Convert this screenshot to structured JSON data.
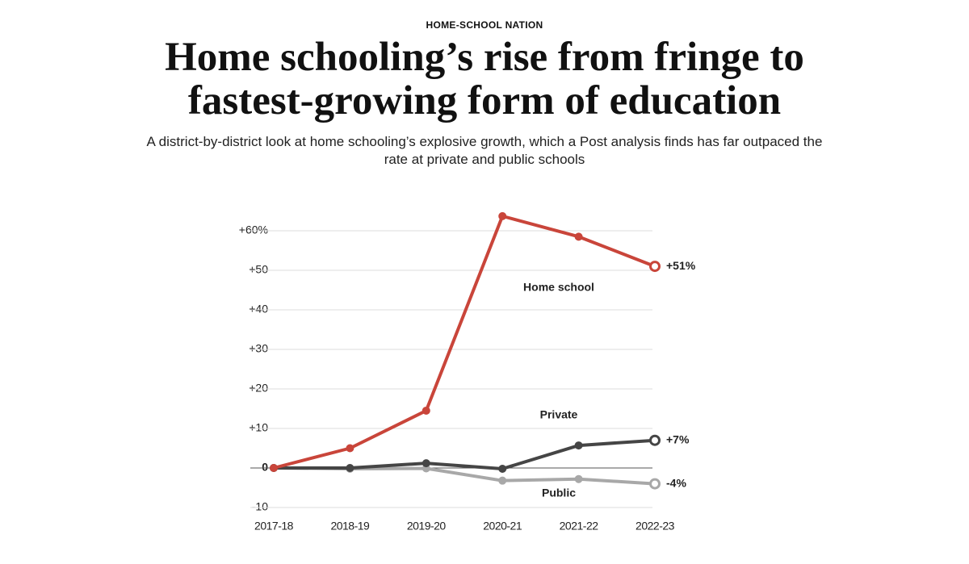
{
  "kicker": "HOME-SCHOOL NATION",
  "title": "Home schooling’s rise from fringe to fastest-growing form of education",
  "subtitle": "A district-by-district look at home schooling’s explosive growth, which a Post analysis finds has far outpaced the rate at private and public schools",
  "chart_data": {
    "type": "line",
    "categories": [
      "2017-18",
      "2018-19",
      "2019-20",
      "2020-21",
      "2021-22",
      "2022-23"
    ],
    "series": [
      {
        "name": "Home school",
        "color": "#c9453a",
        "values": [
          0,
          5,
          14.5,
          63.7,
          58.5,
          51
        ],
        "value_labels": [
          null,
          null,
          null,
          null,
          null,
          "+51%"
        ]
      },
      {
        "name": "Private",
        "color": "#454545",
        "values": [
          0,
          0,
          1.2,
          -0.2,
          5.7,
          7
        ],
        "value_labels": [
          null,
          null,
          null,
          null,
          null,
          "+7%"
        ]
      },
      {
        "name": "Public",
        "color": "#a8a8a8",
        "values": [
          0,
          -0.2,
          -0.1,
          -3.2,
          -2.8,
          -4
        ],
        "value_labels": [
          null,
          null,
          null,
          null,
          null,
          "-4%"
        ]
      }
    ],
    "ylim": [
      -10,
      65
    ],
    "yticks": [
      -10,
      0,
      {
        "value": 10,
        "label": "+10"
      },
      {
        "value": 20,
        "label": "+20"
      },
      {
        "value": 30,
        "label": "+30"
      },
      {
        "value": 40,
        "label": "+40"
      },
      {
        "value": 50,
        "label": "+50"
      },
      {
        "value": 60,
        "label": "+60%"
      }
    ],
    "grid": true
  }
}
